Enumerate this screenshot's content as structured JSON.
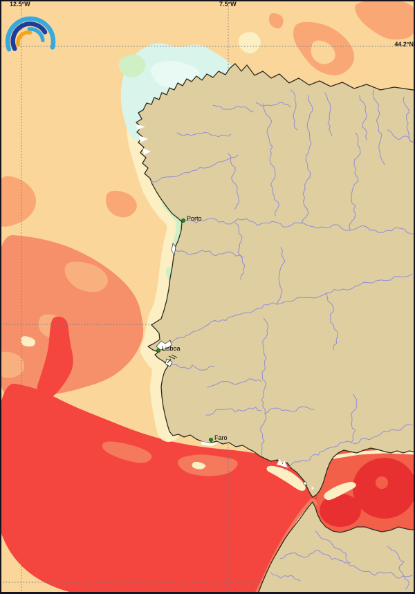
{
  "grid_labels": {
    "lon_left": "12.5°W",
    "lon_mid": "7.5°W",
    "lat_right": "44.2°N"
  },
  "cities": [
    {
      "name": "Porto"
    },
    {
      "name": "Lisboa"
    },
    {
      "name": "Faro"
    }
  ],
  "icons": {
    "logo": "rainbow-arcs-logo"
  },
  "colors": {
    "paleOrange": "#FBD69B",
    "cream": "#FCEFC3",
    "mint": "#CFEFC5",
    "cyan": "#D8F4EB",
    "cyanLight": "#E9FAF4",
    "orange": "#F9A875",
    "salmon": "#F5906A",
    "salmonLight": "#F8B07E",
    "salmonSwirl": "#F5795C",
    "red": "#F4463E",
    "darkRed": "#E93030",
    "alboran": "#F2604A",
    "land": "#DFCEA0",
    "river": "#8F8FD9",
    "coast": "#2B2A20",
    "grid": "#6F7E8A",
    "white": "#FFFFFF",
    "labelText": "#1A1A1A",
    "cityDot": "#1C8A1E",
    "cityDotEdge": "#0E5E10",
    "border": "#14141E",
    "logoCyan": "#36A9DD",
    "logoNavy": "#1D3F9B",
    "logoOrange": "#F5A41F"
  }
}
